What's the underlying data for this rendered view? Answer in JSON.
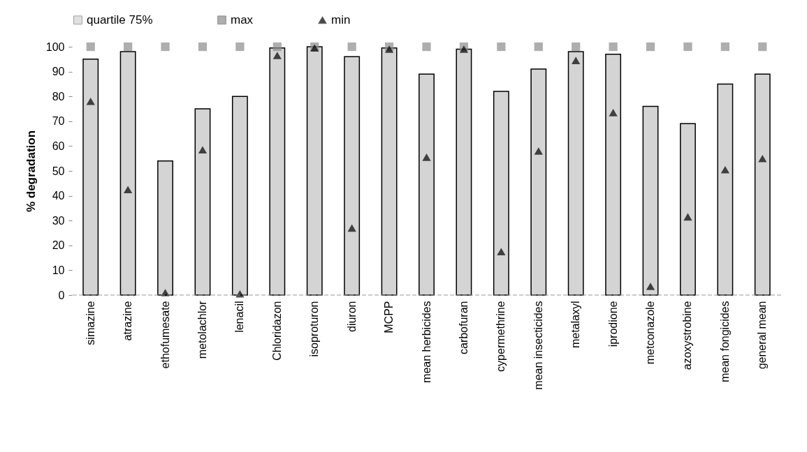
{
  "chart_data": {
    "type": "bar",
    "ylabel": "% degradation",
    "categories": [
      "simazine",
      "atrazine",
      "ethofumesate",
      "metolachlor",
      "lenacil",
      "Chloridazon",
      "isoproturon",
      "diuron",
      "MCPP",
      "mean  herbicides",
      "carbofuran",
      "cypermethrine",
      "mean  insecticides",
      "metalaxyl",
      "iprodione",
      "metconazole",
      "azoxystrobine",
      "mean fongicides",
      "general mean"
    ],
    "series": [
      {
        "name": "quartile 75%",
        "color": "#d4d4d4",
        "values": [
          95,
          98,
          54,
          75,
          80,
          99.5,
          100,
          96,
          99.5,
          89,
          99,
          82,
          91,
          98,
          97,
          76,
          69,
          85,
          89
        ]
      },
      {
        "name": "max",
        "type": "scatter",
        "marker": "square",
        "color": "#8c8c8c",
        "values": [
          100,
          100,
          100,
          100,
          100,
          100,
          100,
          100,
          100,
          100,
          100,
          100,
          100,
          100,
          100,
          100,
          100,
          100,
          100
        ]
      },
      {
        "name": "min",
        "type": "scatter",
        "marker": "triangle",
        "color": "#000000",
        "values": [
          78,
          42.5,
          1,
          58.5,
          0.5,
          96.5,
          99.5,
          27,
          99,
          55.5,
          99,
          17.5,
          58,
          94.5,
          73.5,
          3.5,
          31.5,
          50.5,
          55
        ]
      }
    ],
    "ylim": [
      0,
      100
    ],
    "yticks": [
      0,
      10,
      20,
      30,
      40,
      50,
      60,
      70,
      80,
      90,
      100
    ],
    "grid": false,
    "legend": "top"
  }
}
